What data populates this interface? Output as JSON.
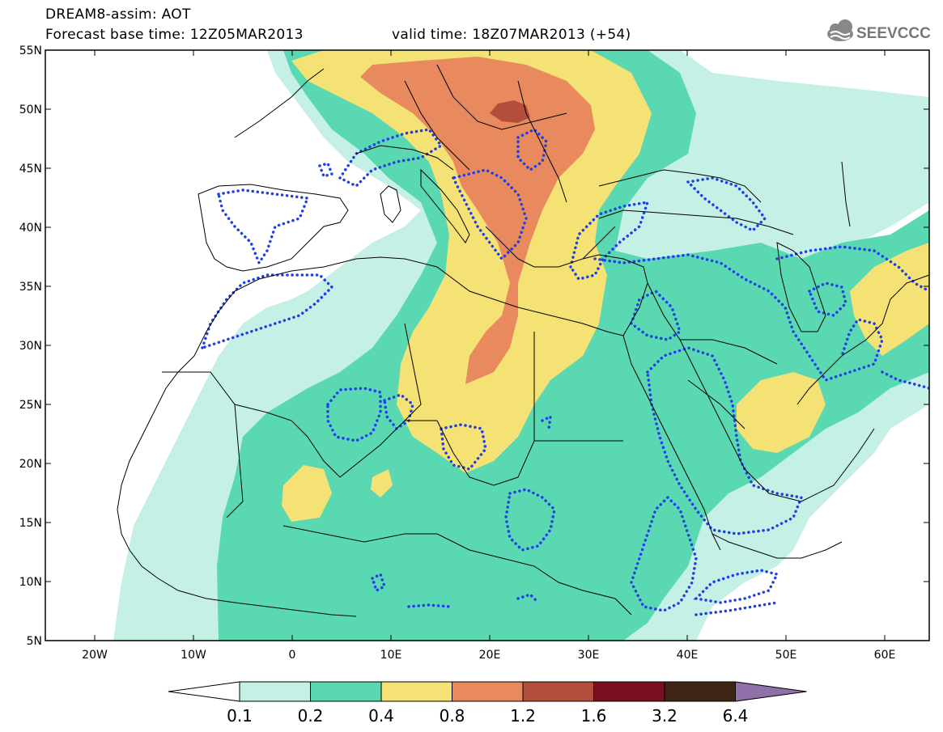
{
  "header": {
    "line1": "DREAM8-assim: AOT",
    "line2": "Forecast base time: 12Z05MAR2013",
    "valid": "valid time: 18Z07MAR2013 (+54)"
  },
  "logo": {
    "text": "SEEVCCC",
    "icon": "cloud-icon"
  },
  "axes": {
    "lat_labels": [
      "55N",
      "50N",
      "45N",
      "40N",
      "35N",
      "30N",
      "25N",
      "20N",
      "15N",
      "10N",
      "5N"
    ],
    "lon_labels": [
      "20W",
      "10W",
      "0",
      "10E",
      "20E",
      "30E",
      "40E",
      "50E",
      "60E"
    ]
  },
  "colorbar": {
    "labels": [
      "0.1",
      "0.2",
      "0.4",
      "0.8",
      "1.2",
      "1.6",
      "3.2",
      "6.4"
    ],
    "colors": [
      "#ffffff",
      "#c4f0e6",
      "#5ad8b1",
      "#f5e275",
      "#e88a5e",
      "#b34e3c",
      "#7a0f22",
      "#3e2414",
      "#8f70a8"
    ]
  },
  "legend_colors": {
    "low": "#c4f0e6",
    "mid": "#5ad8b1",
    "high": "#f5e275",
    "vhigh": "#e88a5e",
    "peak": "#b34e3c",
    "contour": "#1f3fe6"
  }
}
